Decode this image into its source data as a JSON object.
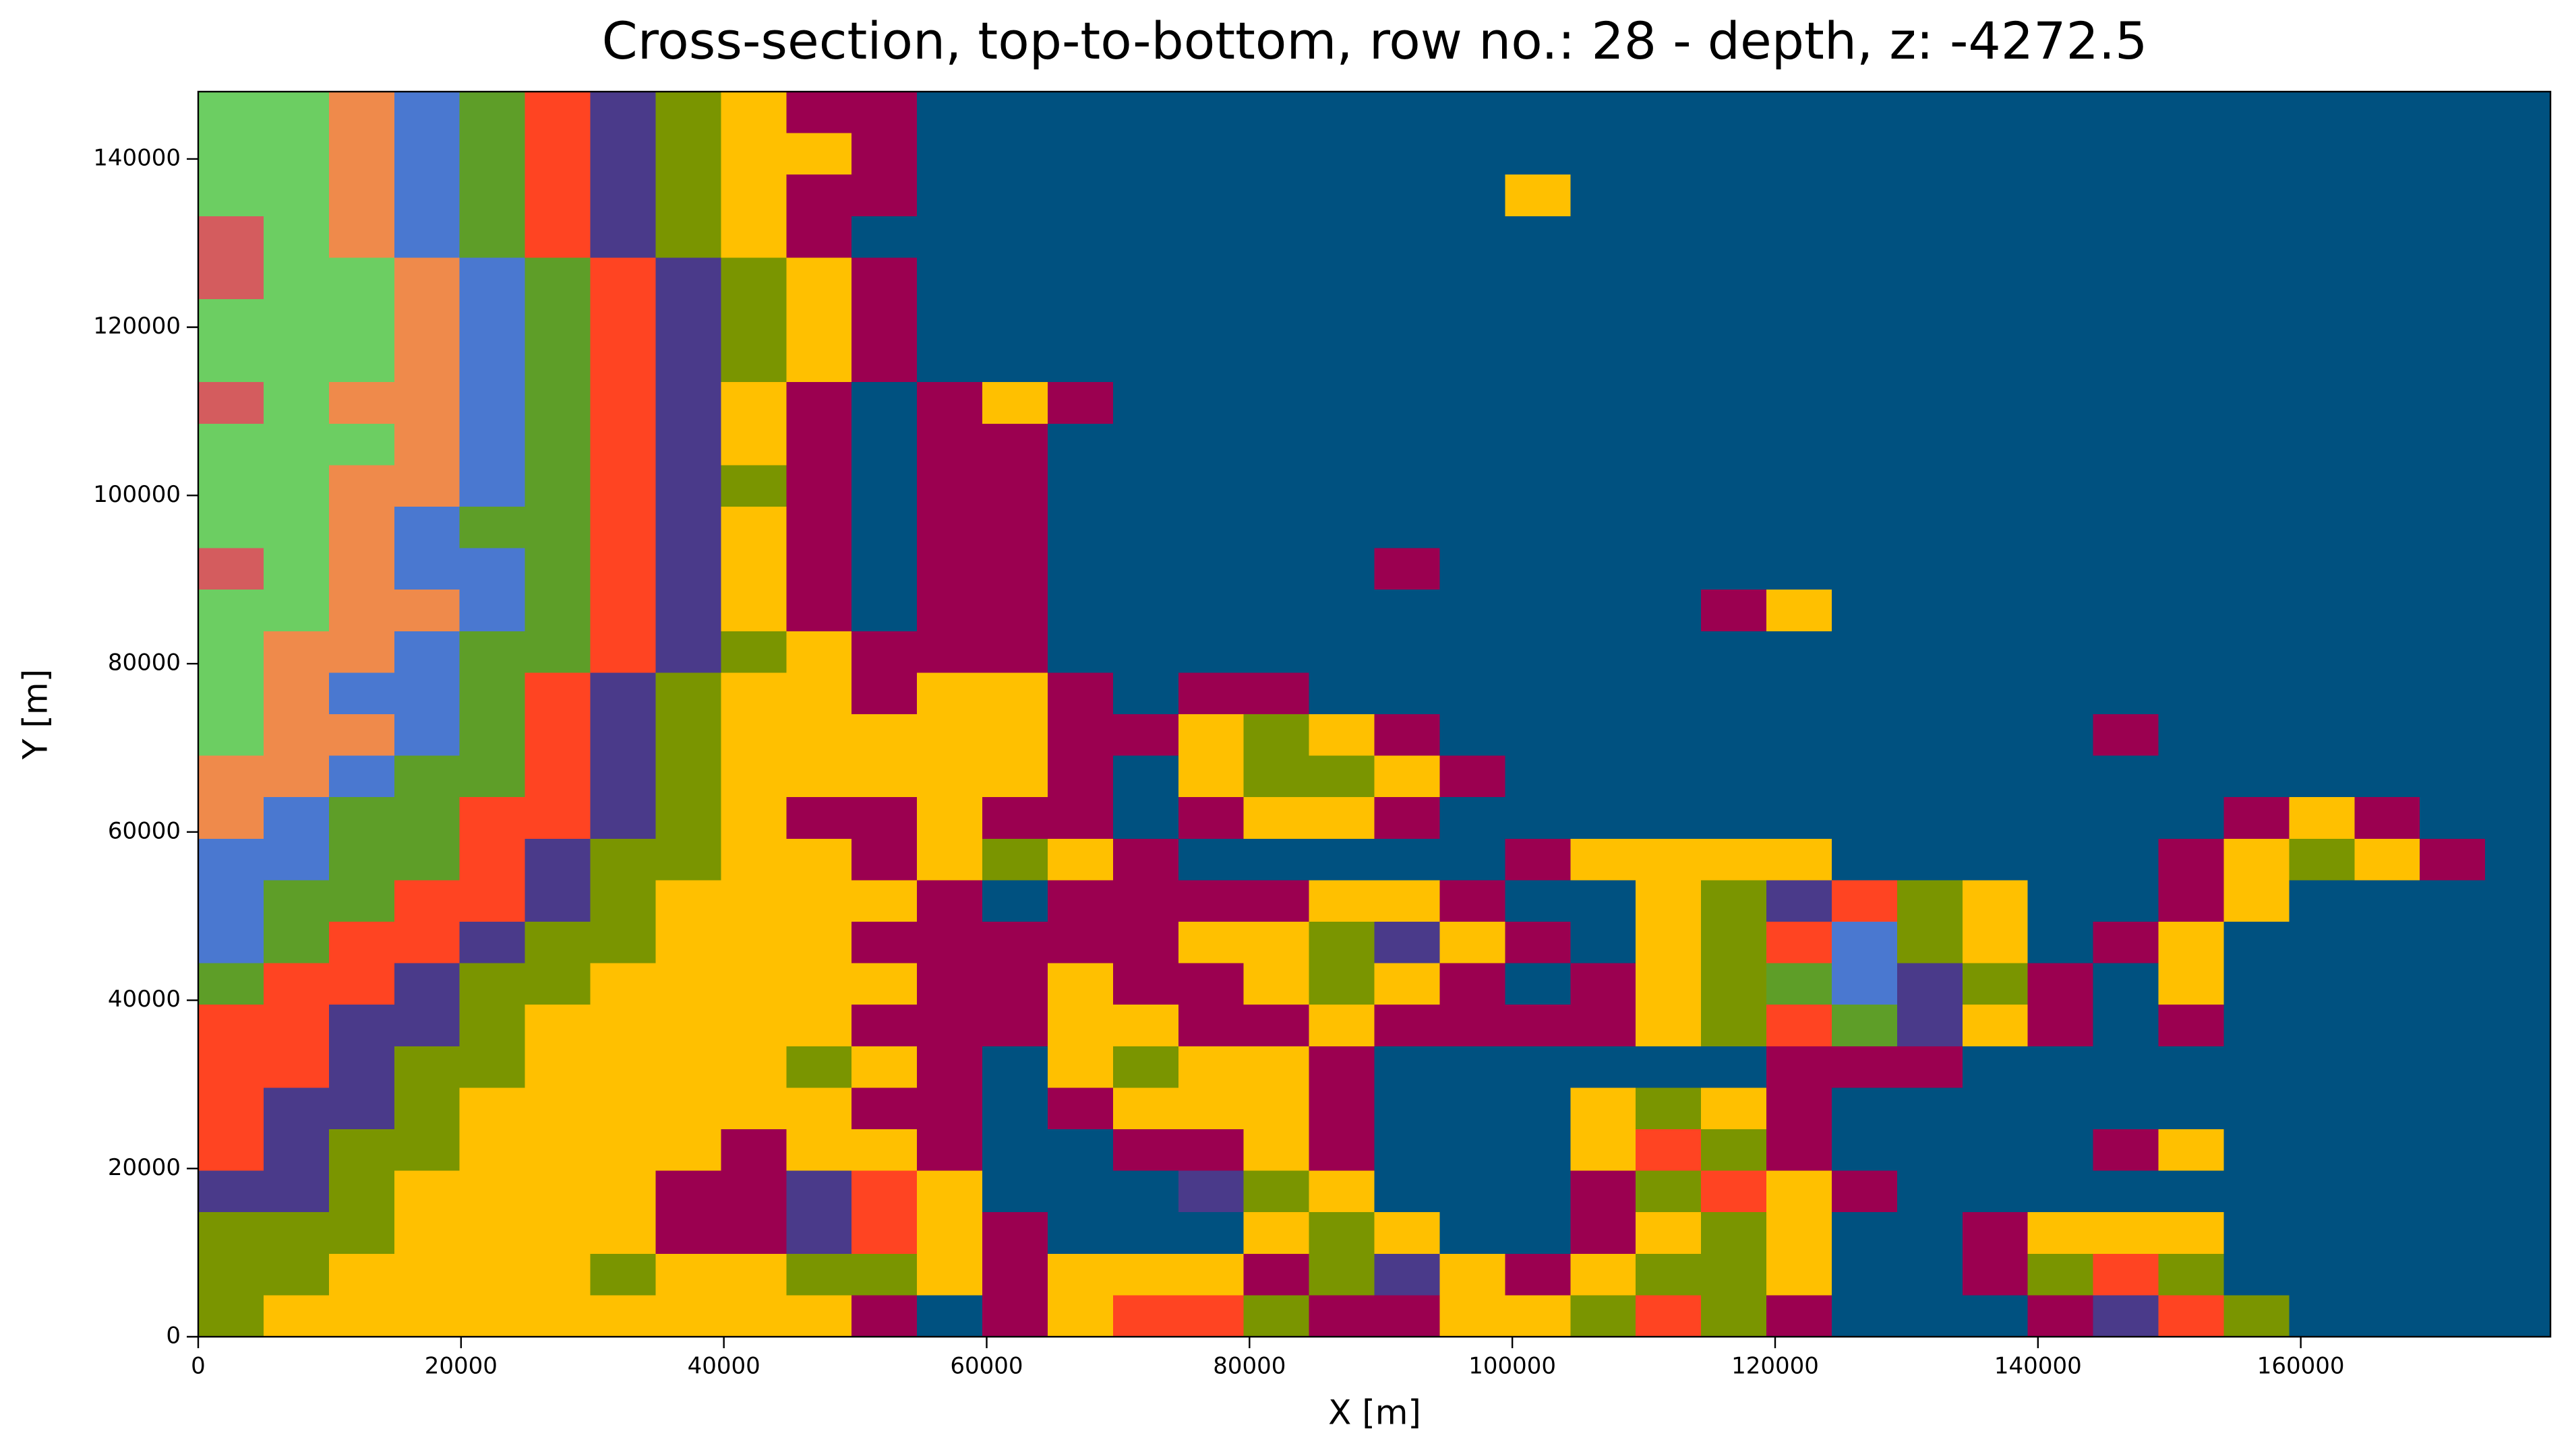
{
  "chart_data": {
    "type": "heatmap",
    "title": "Cross-section, top-to-bottom, row no.: 28 - depth, z: -4272.5",
    "x_label": "X [m]",
    "y_label": "Y [m]",
    "xlim": [
      0,
      179000
    ],
    "ylim": [
      0,
      148000
    ],
    "xticks": [
      0,
      20000,
      40000,
      60000,
      80000,
      100000,
      120000,
      140000,
      160000
    ],
    "yticks": [
      0,
      20000,
      40000,
      60000,
      80000,
      100000,
      120000,
      140000
    ],
    "colors": [
      "#005180",
      "#9b0050",
      "#ffc000",
      "#7a9500",
      "#4a3a8a",
      "#ff4422",
      "#5e9e28",
      "#4a78d0",
      "#ef8a4b",
      "#6cce62",
      "#d45c5e"
    ],
    "values": [
      [
        9,
        9,
        8,
        7,
        6,
        5,
        4,
        3,
        2,
        1,
        1,
        0,
        0,
        0,
        0,
        0,
        0,
        0,
        0,
        0,
        0,
        0,
        0,
        0,
        0,
        0,
        0,
        0,
        0,
        0,
        0,
        0,
        0,
        0,
        0,
        0
      ],
      [
        9,
        9,
        8,
        7,
        6,
        5,
        4,
        3,
        2,
        2,
        1,
        0,
        0,
        0,
        0,
        0,
        0,
        0,
        0,
        0,
        0,
        0,
        0,
        0,
        0,
        0,
        0,
        0,
        0,
        0,
        0,
        0,
        0,
        0,
        0,
        0
      ],
      [
        9,
        9,
        8,
        7,
        6,
        5,
        4,
        3,
        2,
        1,
        1,
        0,
        0,
        0,
        0,
        0,
        0,
        0,
        0,
        0,
        2,
        0,
        0,
        0,
        0,
        0,
        0,
        0,
        0,
        0,
        0,
        0,
        0,
        0,
        0,
        0
      ],
      [
        10,
        9,
        8,
        7,
        6,
        5,
        4,
        3,
        2,
        1,
        0,
        0,
        0,
        0,
        0,
        0,
        0,
        0,
        0,
        0,
        0,
        0,
        0,
        0,
        0,
        0,
        0,
        0,
        0,
        0,
        0,
        0,
        0,
        0,
        0,
        0
      ],
      [
        10,
        9,
        9,
        8,
        7,
        6,
        5,
        4,
        3,
        2,
        1,
        0,
        0,
        0,
        0,
        0,
        0,
        0,
        0,
        0,
        0,
        0,
        0,
        0,
        0,
        0,
        0,
        0,
        0,
        0,
        0,
        0,
        0,
        0,
        0,
        0
      ],
      [
        9,
        9,
        9,
        8,
        7,
        6,
        5,
        4,
        3,
        2,
        1,
        0,
        0,
        0,
        0,
        0,
        0,
        0,
        0,
        0,
        0,
        0,
        0,
        0,
        0,
        0,
        0,
        0,
        0,
        0,
        0,
        0,
        0,
        0,
        0,
        0
      ],
      [
        9,
        9,
        9,
        8,
        7,
        6,
        5,
        4,
        3,
        2,
        1,
        0,
        0,
        0,
        0,
        0,
        0,
        0,
        0,
        0,
        0,
        0,
        0,
        0,
        0,
        0,
        0,
        0,
        0,
        0,
        0,
        0,
        0,
        0,
        0,
        0
      ],
      [
        10,
        9,
        8,
        8,
        7,
        6,
        5,
        4,
        2,
        1,
        0,
        1,
        2,
        1,
        0,
        0,
        0,
        0,
        0,
        0,
        0,
        0,
        0,
        0,
        0,
        0,
        0,
        0,
        0,
        0,
        0,
        0,
        0,
        0,
        0,
        0
      ],
      [
        9,
        9,
        9,
        8,
        7,
        6,
        5,
        4,
        2,
        1,
        0,
        1,
        1,
        0,
        0,
        0,
        0,
        0,
        0,
        0,
        0,
        0,
        0,
        0,
        0,
        0,
        0,
        0,
        0,
        0,
        0,
        0,
        0,
        0,
        0,
        0
      ],
      [
        9,
        9,
        8,
        8,
        7,
        6,
        5,
        4,
        3,
        1,
        0,
        1,
        1,
        0,
        0,
        0,
        0,
        0,
        0,
        0,
        0,
        0,
        0,
        0,
        0,
        0,
        0,
        0,
        0,
        0,
        0,
        0,
        0,
        0,
        0,
        0
      ],
      [
        9,
        9,
        8,
        7,
        6,
        6,
        5,
        4,
        2,
        1,
        0,
        1,
        1,
        0,
        0,
        0,
        0,
        0,
        0,
        0,
        0,
        0,
        0,
        0,
        0,
        0,
        0,
        0,
        0,
        0,
        0,
        0,
        0,
        0,
        0,
        0
      ],
      [
        10,
        9,
        8,
        7,
        7,
        6,
        5,
        4,
        2,
        1,
        0,
        1,
        1,
        0,
        0,
        0,
        0,
        0,
        1,
        0,
        0,
        0,
        0,
        0,
        0,
        0,
        0,
        0,
        0,
        0,
        0,
        0,
        0,
        0,
        0,
        0
      ],
      [
        9,
        9,
        8,
        8,
        7,
        6,
        5,
        4,
        2,
        1,
        0,
        1,
        1,
        0,
        0,
        0,
        0,
        0,
        0,
        0,
        0,
        0,
        0,
        1,
        2,
        0,
        0,
        0,
        0,
        0,
        0,
        0,
        0,
        0,
        0,
        0
      ],
      [
        9,
        8,
        8,
        7,
        6,
        6,
        5,
        4,
        3,
        2,
        1,
        1,
        1,
        0,
        0,
        0,
        0,
        0,
        0,
        0,
        0,
        0,
        0,
        0,
        0,
        0,
        0,
        0,
        0,
        0,
        0,
        0,
        0,
        0,
        0,
        0
      ],
      [
        9,
        8,
        7,
        7,
        6,
        5,
        4,
        3,
        2,
        2,
        1,
        2,
        2,
        1,
        0,
        1,
        1,
        0,
        0,
        0,
        0,
        0,
        0,
        0,
        0,
        0,
        0,
        0,
        0,
        0,
        0,
        0,
        0,
        0,
        0,
        0
      ],
      [
        9,
        8,
        8,
        7,
        6,
        5,
        4,
        3,
        2,
        2,
        2,
        2,
        2,
        1,
        1,
        2,
        3,
        2,
        1,
        0,
        0,
        0,
        0,
        0,
        0,
        0,
        0,
        0,
        0,
        1,
        0,
        0,
        0,
        0,
        0,
        0
      ],
      [
        8,
        8,
        7,
        6,
        6,
        5,
        4,
        3,
        2,
        2,
        2,
        2,
        2,
        1,
        0,
        2,
        3,
        3,
        2,
        1,
        0,
        0,
        0,
        0,
        0,
        0,
        0,
        0,
        0,
        0,
        0,
        0,
        0,
        0,
        0,
        0
      ],
      [
        8,
        7,
        6,
        6,
        5,
        5,
        4,
        3,
        2,
        1,
        1,
        2,
        1,
        1,
        0,
        1,
        2,
        2,
        1,
        0,
        0,
        0,
        0,
        0,
        0,
        0,
        0,
        0,
        0,
        0,
        0,
        1,
        2,
        1,
        0,
        0
      ],
      [
        7,
        7,
        6,
        6,
        5,
        4,
        3,
        3,
        2,
        2,
        1,
        2,
        3,
        2,
        1,
        0,
        0,
        0,
        0,
        0,
        1,
        2,
        2,
        2,
        2,
        0,
        0,
        0,
        0,
        0,
        1,
        2,
        3,
        2,
        1,
        0
      ],
      [
        7,
        6,
        6,
        5,
        5,
        4,
        3,
        2,
        2,
        2,
        2,
        1,
        0,
        1,
        1,
        1,
        1,
        2,
        2,
        1,
        0,
        0,
        2,
        3,
        4,
        5,
        3,
        2,
        0,
        0,
        1,
        2,
        0,
        0,
        0,
        0
      ],
      [
        7,
        6,
        5,
        5,
        4,
        3,
        3,
        2,
        2,
        2,
        1,
        1,
        1,
        1,
        1,
        2,
        2,
        3,
        4,
        2,
        1,
        0,
        2,
        3,
        5,
        7,
        3,
        2,
        0,
        1,
        2,
        0,
        0,
        0,
        0,
        0
      ],
      [
        6,
        5,
        5,
        4,
        3,
        3,
        2,
        2,
        2,
        2,
        2,
        1,
        1,
        2,
        1,
        1,
        2,
        3,
        2,
        1,
        0,
        1,
        2,
        3,
        6,
        7,
        4,
        3,
        1,
        0,
        2,
        0,
        0,
        0,
        0,
        0
      ],
      [
        5,
        5,
        4,
        4,
        3,
        2,
        2,
        2,
        2,
        2,
        1,
        1,
        1,
        2,
        2,
        1,
        1,
        2,
        1,
        1,
        1,
        1,
        2,
        3,
        5,
        6,
        4,
        2,
        1,
        0,
        1,
        0,
        0,
        0,
        0,
        0
      ],
      [
        5,
        5,
        4,
        3,
        3,
        2,
        2,
        2,
        2,
        3,
        2,
        1,
        0,
        2,
        3,
        2,
        2,
        1,
        0,
        0,
        0,
        0,
        0,
        0,
        1,
        1,
        1,
        0,
        0,
        0,
        0,
        0,
        0,
        0,
        0,
        0
      ],
      [
        5,
        4,
        4,
        3,
        2,
        2,
        2,
        2,
        2,
        2,
        1,
        1,
        0,
        1,
        2,
        2,
        2,
        1,
        0,
        0,
        0,
        2,
        3,
        2,
        1,
        0,
        0,
        0,
        0,
        0,
        0,
        0,
        0,
        0,
        0,
        0
      ],
      [
        5,
        4,
        3,
        3,
        2,
        2,
        2,
        2,
        1,
        2,
        2,
        1,
        0,
        0,
        1,
        1,
        2,
        1,
        0,
        0,
        0,
        2,
        5,
        3,
        1,
        0,
        0,
        0,
        0,
        1,
        2,
        0,
        0,
        0,
        0,
        0
      ],
      [
        4,
        4,
        3,
        2,
        2,
        2,
        2,
        1,
        1,
        4,
        5,
        2,
        0,
        0,
        0,
        4,
        3,
        2,
        0,
        0,
        0,
        1,
        3,
        5,
        2,
        1,
        0,
        0,
        0,
        0,
        0,
        0,
        0,
        0,
        0,
        0
      ],
      [
        3,
        3,
        3,
        2,
        2,
        2,
        2,
        1,
        1,
        4,
        5,
        2,
        1,
        0,
        0,
        0,
        2,
        3,
        2,
        0,
        0,
        1,
        2,
        3,
        2,
        0,
        0,
        1,
        2,
        2,
        2,
        0,
        0,
        0,
        0,
        0
      ],
      [
        3,
        3,
        2,
        2,
        2,
        2,
        3,
        2,
        2,
        3,
        3,
        2,
        1,
        2,
        2,
        2,
        1,
        3,
        4,
        2,
        1,
        2,
        3,
        3,
        2,
        0,
        0,
        1,
        3,
        5,
        3,
        0,
        0,
        0,
        0,
        0
      ],
      [
        3,
        2,
        2,
        2,
        2,
        2,
        2,
        2,
        2,
        2,
        1,
        0,
        1,
        2,
        5,
        5,
        3,
        1,
        1,
        2,
        2,
        3,
        5,
        3,
        1,
        0,
        0,
        0,
        1,
        4,
        5,
        3,
        0,
        0,
        0,
        0
      ]
    ]
  }
}
